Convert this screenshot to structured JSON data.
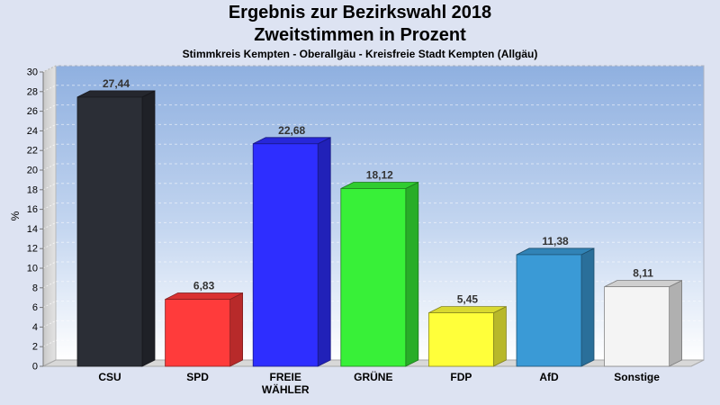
{
  "chart_data": {
    "type": "bar",
    "title": "Ergebnis zur Bezirkswahl 2018",
    "title2": "Zweitstimmen in Prozent",
    "subtitle": "Stimmkreis Kempten - Oberallgäu - Kreisfreie Stadt Kempten (Allgäu)",
    "ylabel": "%",
    "xlabel": "",
    "ylim": [
      0,
      30
    ],
    "yticks": [
      "0",
      "2",
      "4",
      "6",
      "8",
      "10",
      "12",
      "14",
      "16",
      "18",
      "20",
      "22",
      "24",
      "26",
      "28",
      "30"
    ],
    "categories": [
      [
        "CSU"
      ],
      [
        "SPD"
      ],
      [
        "FREIE",
        "WÄHLER"
      ],
      [
        "GRÜNE"
      ],
      [
        "FDP"
      ],
      [
        "AfD"
      ],
      [
        "Sonstige"
      ]
    ],
    "values": [
      27.44,
      6.83,
      22.68,
      18.12,
      5.45,
      11.38,
      8.11
    ],
    "value_labels": [
      "27,44",
      "6,83",
      "22,68",
      "18,12",
      "5,45",
      "11,38",
      "8,11"
    ],
    "colors": [
      "#2b2e36",
      "#ff3b3b",
      "#2e2eff",
      "#38f038",
      "#ffff3a",
      "#3a9ad6",
      "#f4f4f4"
    ],
    "grid": true,
    "legend": "none"
  }
}
